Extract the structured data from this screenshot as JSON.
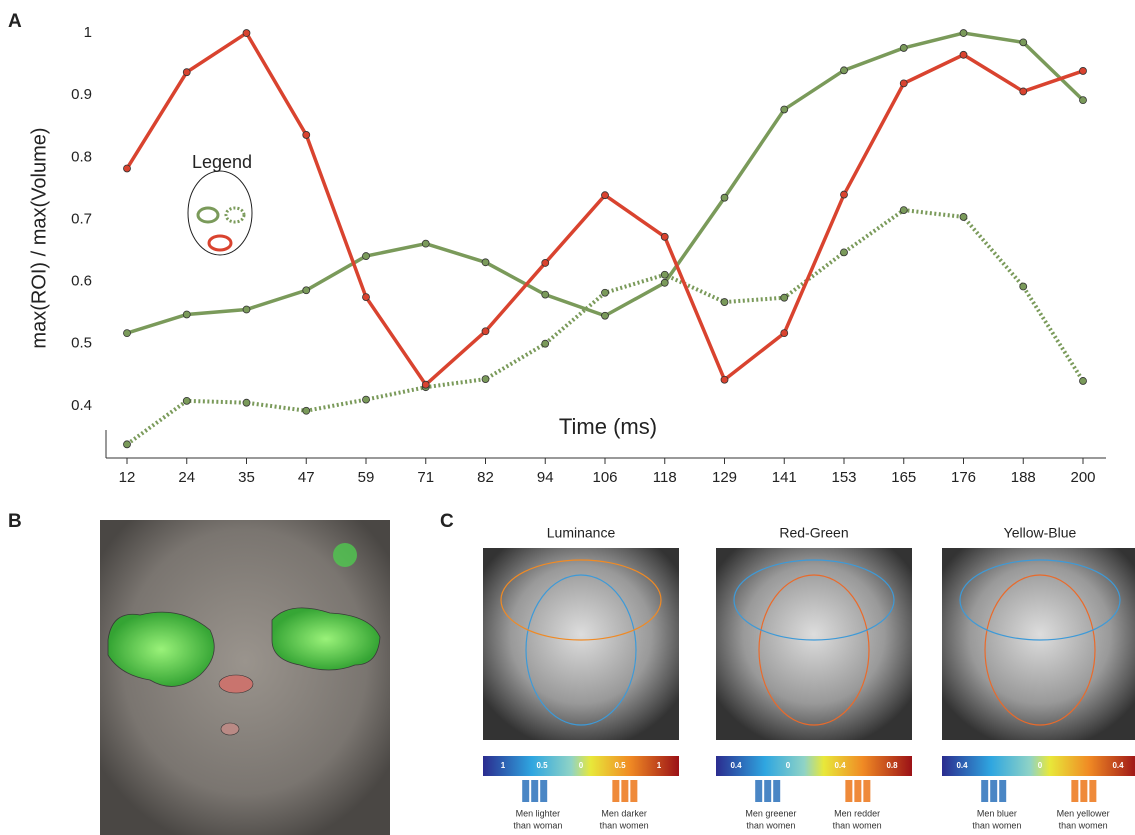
{
  "chart_data": {
    "type": "line",
    "panel_label": "A",
    "y_label": "max(ROI) / max(Volume)",
    "x_label": "Time (ms)",
    "legend_title": "Legend",
    "categories": [
      "12",
      "24",
      "35",
      "47",
      "59",
      "71",
      "82",
      "94",
      "106",
      "118",
      "129",
      "141",
      "153",
      "165",
      "176",
      "188",
      "200"
    ],
    "ylim": [
      0.316,
      1.021
    ],
    "yticks": [
      0.4,
      0.5,
      0.6,
      0.7,
      0.8,
      0.9,
      1
    ],
    "series": [
      {
        "color": "#7a9a5a",
        "style": "solid",
        "markers": true,
        "values": [
          0.517,
          0.547,
          0.555,
          0.586,
          0.641,
          0.661,
          0.631,
          0.579,
          0.545,
          0.598,
          0.735,
          0.877,
          0.94,
          0.976,
          1.0,
          0.985,
          0.892
        ]
      },
      {
        "color": "#7a9a5a",
        "style": "dotted",
        "markers": true,
        "values": [
          0.338,
          0.408,
          0.405,
          0.392,
          0.41,
          0.43,
          0.443,
          0.5,
          0.582,
          0.611,
          0.567,
          0.574,
          0.647,
          0.715,
          0.704,
          0.592,
          0.44
        ]
      },
      {
        "color": "#d9432f",
        "style": "solid",
        "markers": true,
        "values": [
          0.782,
          0.937,
          1.0,
          0.836,
          0.575,
          0.434,
          0.52,
          0.63,
          0.739,
          0.672,
          0.442,
          0.517,
          0.74,
          0.919,
          0.965,
          0.906,
          0.939
        ]
      }
    ]
  },
  "panel_b": {
    "label": "B"
  },
  "panel_c": {
    "label": "C",
    "maps": [
      {
        "title": "Luminance",
        "colorbar": [
          "1",
          "0.5",
          "0",
          "0.5",
          "1"
        ],
        "captions": [
          [
            "Men lighter",
            "than woman"
          ],
          [
            "Men darker",
            "than women"
          ]
        ]
      },
      {
        "title": "Red-Green",
        "colorbar": [
          "0.4",
          "0",
          "0.4",
          "0.8"
        ],
        "captions": [
          [
            "Men greener",
            "than women"
          ],
          [
            "Men redder",
            "than women"
          ]
        ]
      },
      {
        "title": "Yellow-Blue",
        "colorbar": [
          "0.4",
          "0",
          "0.4"
        ],
        "captions": [
          [
            "Men bluer",
            "than women"
          ],
          [
            "Men yellower",
            "than women"
          ]
        ]
      }
    ]
  }
}
